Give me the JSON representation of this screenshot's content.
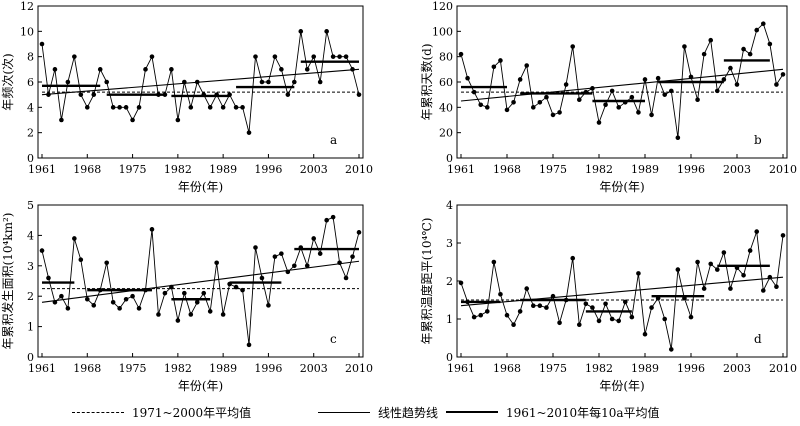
{
  "chart_data": [
    {
      "panel": "a",
      "type": "line",
      "ylabel": "年频次(次)",
      "xlabel": "年份(年)",
      "ylim": [
        0,
        12
      ],
      "yticks": [
        "0",
        "2",
        "4",
        "6",
        "8",
        "10",
        "12"
      ],
      "xlim": [
        1961,
        2010
      ],
      "xticks": [
        "1961",
        "1968",
        "1975",
        "1982",
        "1989",
        "1996",
        "2003",
        "2010"
      ],
      "x": [
        1961,
        1962,
        1963,
        1964,
        1965,
        1966,
        1967,
        1968,
        1969,
        1970,
        1971,
        1972,
        1973,
        1974,
        1975,
        1976,
        1977,
        1978,
        1979,
        1980,
        1981,
        1982,
        1983,
        1984,
        1985,
        1986,
        1987,
        1988,
        1989,
        1990,
        1991,
        1992,
        1993,
        1994,
        1995,
        1996,
        1997,
        1998,
        1999,
        2000,
        2001,
        2002,
        2003,
        2004,
        2005,
        2006,
        2007,
        2008,
        2009,
        2010
      ],
      "values": [
        9,
        5,
        7,
        3,
        6,
        8,
        5,
        4,
        5,
        7,
        6,
        4,
        4,
        4,
        3,
        4,
        7,
        8,
        5,
        5,
        7,
        3,
        6,
        4,
        6,
        5,
        4,
        5,
        4,
        5,
        4,
        4,
        2,
        8,
        6,
        6,
        8,
        7,
        5,
        6,
        10,
        7,
        8,
        6,
        10,
        8,
        8,
        8,
        7,
        5
      ],
      "baseline_1971_2000": 5.2,
      "trend": [
        5.0,
        7.0
      ],
      "decade_means": [
        {
          "range": [
            1961,
            1970
          ],
          "value": 5.7
        },
        {
          "range": [
            1971,
            1980
          ],
          "value": 5.0
        },
        {
          "range": [
            1981,
            1990
          ],
          "value": 4.9
        },
        {
          "range": [
            1991,
            2000
          ],
          "value": 5.6
        },
        {
          "range": [
            2001,
            2010
          ],
          "value": 7.6
        }
      ]
    },
    {
      "panel": "b",
      "type": "line",
      "ylabel": "年累积天数(d)",
      "xlabel": "年份(年)",
      "ylim": [
        0,
        120
      ],
      "yticks": [
        "0",
        "20",
        "40",
        "60",
        "80",
        "100",
        "120"
      ],
      "xlim": [
        1961,
        2010
      ],
      "xticks": [
        "1961",
        "1968",
        "1975",
        "1982",
        "1989",
        "1996",
        "2003",
        "2010"
      ],
      "x": [
        1961,
        1962,
        1963,
        1964,
        1965,
        1966,
        1967,
        1968,
        1969,
        1970,
        1971,
        1972,
        1973,
        1974,
        1975,
        1976,
        1977,
        1978,
        1979,
        1980,
        1981,
        1982,
        1983,
        1984,
        1985,
        1986,
        1987,
        1988,
        1989,
        1990,
        1991,
        1992,
        1993,
        1994,
        1995,
        1996,
        1997,
        1998,
        1999,
        2000,
        2001,
        2002,
        2003,
        2004,
        2005,
        2006,
        2007,
        2008,
        2009,
        2010
      ],
      "values": [
        82,
        63,
        52,
        42,
        40,
        72,
        77,
        38,
        44,
        62,
        73,
        40,
        44,
        48,
        34,
        36,
        58,
        88,
        46,
        52,
        55,
        28,
        42,
        53,
        40,
        44,
        48,
        36,
        62,
        34,
        63,
        50,
        53,
        16,
        88,
        64,
        46,
        82,
        93,
        53,
        62,
        71,
        58,
        86,
        82,
        101,
        106,
        90,
        58,
        66
      ],
      "baseline_1971_2000": 52,
      "trend": [
        45,
        70
      ],
      "decade_means": [
        {
          "range": [
            1961,
            1968
          ],
          "value": 56
        },
        {
          "range": [
            1970,
            1981
          ],
          "value": 51
        },
        {
          "range": [
            1981,
            1989
          ],
          "value": 45
        },
        {
          "range": [
            1991,
            2001
          ],
          "value": 60
        },
        {
          "range": [
            2001,
            2008
          ],
          "value": 77
        }
      ]
    },
    {
      "panel": "c",
      "type": "line",
      "ylabel": "年累积发生面积(10⁴km²)",
      "xlabel": "年份(年)",
      "ylim": [
        0,
        5
      ],
      "yticks": [
        "0",
        "1",
        "2",
        "3",
        "4",
        "5"
      ],
      "xlim": [
        1961,
        2010
      ],
      "xticks": [
        "1961",
        "1968",
        "1975",
        "1982",
        "1989",
        "1996",
        "2003",
        "2010"
      ],
      "x": [
        1961,
        1962,
        1963,
        1964,
        1965,
        1966,
        1967,
        1968,
        1969,
        1970,
        1971,
        1972,
        1973,
        1974,
        1975,
        1976,
        1977,
        1978,
        1979,
        1980,
        1981,
        1982,
        1983,
        1984,
        1985,
        1986,
        1987,
        1988,
        1989,
        1990,
        1991,
        1992,
        1993,
        1994,
        1995,
        1996,
        1997,
        1998,
        1999,
        2000,
        2001,
        2002,
        2003,
        2004,
        2005,
        2006,
        2007,
        2008,
        2009,
        2010
      ],
      "values": [
        3.5,
        2.6,
        1.8,
        2.0,
        1.6,
        3.9,
        3.2,
        1.9,
        1.7,
        2.2,
        3.1,
        1.8,
        1.6,
        1.9,
        2.0,
        1.6,
        2.2,
        4.2,
        1.4,
        2.1,
        2.3,
        1.2,
        2.1,
        1.4,
        1.8,
        2.1,
        1.5,
        3.1,
        1.4,
        2.4,
        2.3,
        2.2,
        0.4,
        3.6,
        2.6,
        1.7,
        3.3,
        3.4,
        2.8,
        3.0,
        3.6,
        3.0,
        3.9,
        3.4,
        4.5,
        4.6,
        3.1,
        2.6,
        3.3,
        4.1
      ],
      "baseline_1971_2000": 2.25,
      "trend": [
        1.8,
        3.15
      ],
      "decade_means": [
        {
          "range": [
            1961,
            1966
          ],
          "value": 2.45
        },
        {
          "range": [
            1968,
            1978
          ],
          "value": 2.2
        },
        {
          "range": [
            1981,
            1987
          ],
          "value": 1.9
        },
        {
          "range": [
            1990,
            1998
          ],
          "value": 2.45
        },
        {
          "range": [
            2000,
            2010
          ],
          "value": 3.55
        }
      ]
    },
    {
      "panel": "d",
      "type": "line",
      "ylabel": "年累积温度距平(10⁴℃)",
      "xlabel": "年份(年)",
      "ylim": [
        0,
        4
      ],
      "yticks": [
        "0",
        "1",
        "2",
        "3",
        "4"
      ],
      "xlim": [
        1961,
        2010
      ],
      "xticks": [
        "1961",
        "1968",
        "1975",
        "1982",
        "1989",
        "1996",
        "2003",
        "2010"
      ],
      "x": [
        1961,
        1962,
        1963,
        1964,
        1965,
        1966,
        1967,
        1968,
        1969,
        1970,
        1971,
        1972,
        1973,
        1974,
        1975,
        1976,
        1977,
        1978,
        1979,
        1980,
        1981,
        1982,
        1983,
        1984,
        1985,
        1986,
        1987,
        1988,
        1989,
        1990,
        1991,
        1992,
        1993,
        1994,
        1995,
        1996,
        1997,
        1998,
        1999,
        2000,
        2001,
        2002,
        2003,
        2004,
        2005,
        2006,
        2007,
        2008,
        2009,
        2010
      ],
      "values": [
        1.95,
        1.45,
        1.05,
        1.1,
        1.2,
        2.5,
        1.65,
        1.1,
        0.85,
        1.2,
        1.8,
        1.35,
        1.35,
        1.3,
        1.6,
        0.9,
        1.5,
        2.6,
        0.85,
        1.4,
        1.3,
        0.95,
        1.4,
        1.0,
        0.95,
        1.45,
        1.05,
        2.2,
        0.6,
        1.3,
        1.55,
        1.0,
        0.2,
        2.3,
        1.55,
        1.05,
        2.5,
        1.8,
        2.45,
        2.3,
        2.75,
        1.8,
        2.35,
        2.15,
        2.8,
        3.3,
        1.75,
        2.1,
        1.85,
        3.2
      ],
      "baseline_1971_2000": 1.5,
      "trend": [
        1.35,
        2.1
      ],
      "decade_means": [
        {
          "range": [
            1961,
            1967
          ],
          "value": 1.45
        },
        {
          "range": [
            1970,
            1980
          ],
          "value": 1.5
        },
        {
          "range": [
            1980,
            1987
          ],
          "value": 1.2
        },
        {
          "range": [
            1990,
            1998
          ],
          "value": 1.6
        },
        {
          "range": [
            2000,
            2008
          ],
          "value": 2.4
        }
      ]
    }
  ],
  "legend": {
    "baseline": "1971~2000年平均值",
    "trend": "线性趋势线",
    "decade": "1961~2010年每10a平均值"
  }
}
